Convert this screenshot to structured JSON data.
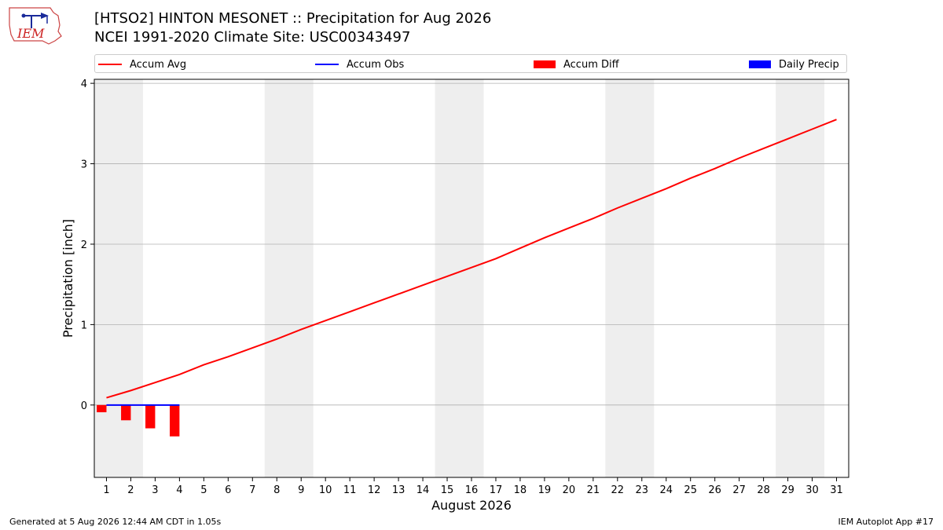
{
  "header": {
    "title": "[HTSO2] HINTON MESONET :: Precipitation for Aug 2026",
    "subtitle": "NCEI 1991-2020 Climate Site: USC00343497"
  },
  "logo": {
    "text": "IEM"
  },
  "footer": {
    "generated": "Generated at 5 Aug 2026 12:44 AM CDT in 1.05s",
    "app": "IEM Autoplot App #17"
  },
  "colors": {
    "accum_avg": "#ff0000",
    "accum_obs": "#0000ff",
    "accum_diff": "#ff0000",
    "daily_precip": "#0000ff",
    "weekend_shade": "#eeeeee",
    "grid": "#b0b0b0"
  },
  "chart_data": {
    "type": "line",
    "xlabel": "August 2026",
    "ylabel": "Precipitation [inch]",
    "xlim": [
      0.5,
      31.5
    ],
    "ylim": [
      -0.9,
      4.05
    ],
    "yticks": [
      0,
      1,
      2,
      3,
      4
    ],
    "grid": "horizontal",
    "legend_position": "top",
    "categories": [
      "1",
      "2",
      "3",
      "4",
      "5",
      "6",
      "7",
      "8",
      "9",
      "10",
      "11",
      "12",
      "13",
      "14",
      "15",
      "16",
      "17",
      "18",
      "19",
      "20",
      "21",
      "22",
      "23",
      "24",
      "25",
      "26",
      "27",
      "28",
      "29",
      "30",
      "31"
    ],
    "weekend_shading": [
      [
        1,
        2
      ],
      [
        8,
        9
      ],
      [
        15,
        16
      ],
      [
        22,
        23
      ],
      [
        29,
        30
      ]
    ],
    "series": [
      {
        "name": "Accum Avg",
        "kind": "line",
        "x": [
          1,
          2,
          3,
          4,
          5,
          6,
          7,
          8,
          9,
          10,
          11,
          12,
          13,
          14,
          15,
          16,
          17,
          18,
          19,
          20,
          21,
          22,
          23,
          24,
          25,
          26,
          27,
          28,
          29,
          30,
          31
        ],
        "values": [
          0.09,
          0.18,
          0.28,
          0.38,
          0.5,
          0.6,
          0.71,
          0.82,
          0.94,
          1.05,
          1.16,
          1.27,
          1.38,
          1.49,
          1.6,
          1.71,
          1.82,
          1.95,
          2.08,
          2.2,
          2.32,
          2.45,
          2.57,
          2.69,
          2.82,
          2.94,
          3.07,
          3.19,
          3.31,
          3.43,
          3.55
        ]
      },
      {
        "name": "Accum Obs",
        "kind": "line",
        "x": [
          1,
          2,
          3,
          4
        ],
        "values": [
          0.0,
          0.0,
          0.0,
          0.0
        ]
      },
      {
        "name": "Accum Diff",
        "kind": "bar",
        "x": [
          1,
          2,
          3,
          4
        ],
        "values": [
          -0.09,
          -0.19,
          -0.29,
          -0.39
        ]
      },
      {
        "name": "Daily Precip",
        "kind": "bar",
        "x": [
          1,
          2,
          3,
          4
        ],
        "values": [
          0.0,
          0.0,
          0.0,
          0.0
        ]
      }
    ]
  }
}
